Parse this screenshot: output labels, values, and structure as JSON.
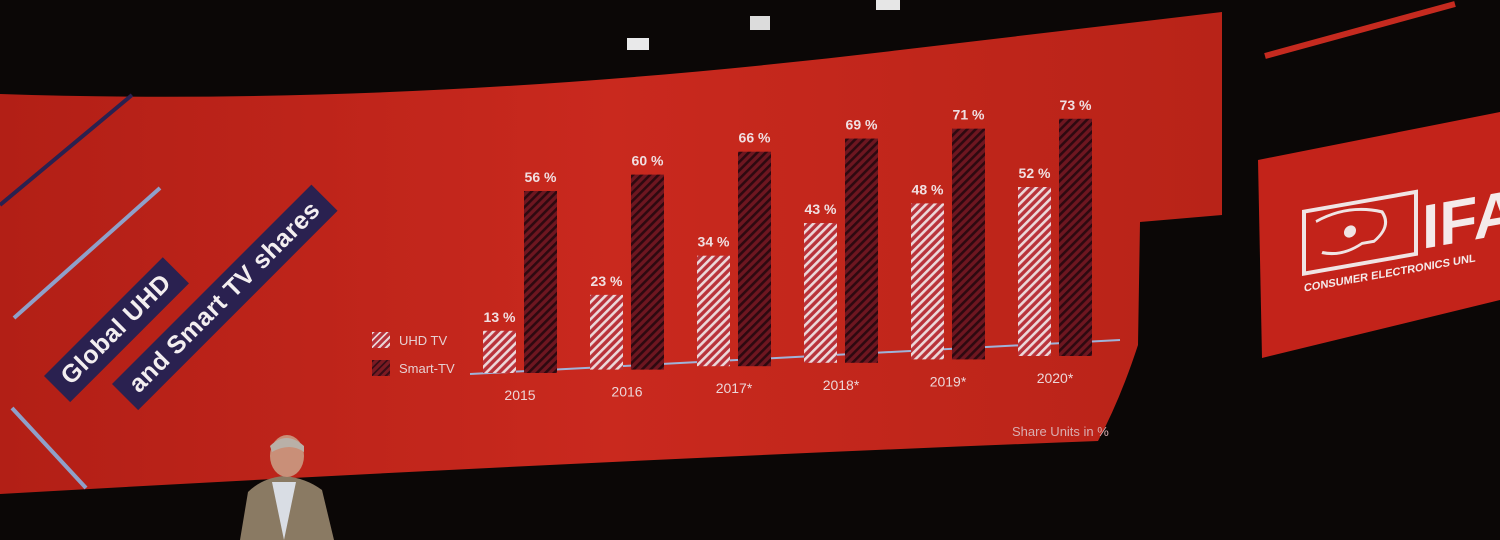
{
  "slide": {
    "title_line1": "Global UHD",
    "title_line2": "and Smart TV shares",
    "footnote": "Share Units in %",
    "colors": {
      "background": "#c4261c",
      "title_box": "#2a2150",
      "uhd": "#e9d3d5",
      "smart": "#3a0d16"
    }
  },
  "logo": {
    "name": "IFA",
    "tagline": "CONSUMER ELECTRONICS UNL"
  },
  "chart_data": {
    "type": "bar",
    "categories": [
      "2015",
      "2016",
      "2017*",
      "2018*",
      "2019*",
      "2020*"
    ],
    "series": [
      {
        "name": "UHD TV",
        "values": [
          13,
          23,
          34,
          43,
          48,
          52
        ],
        "labels": [
          "13 %",
          "23 %",
          "34 %",
          "43 %",
          "48 %",
          "52 %"
        ]
      },
      {
        "name": "Smart-TV",
        "values": [
          56,
          60,
          66,
          69,
          71,
          73
        ],
        "labels": [
          "56 %",
          "60 %",
          "66 %",
          "69 %",
          "71 %",
          "73 %"
        ]
      }
    ],
    "ylim": [
      0,
      80
    ],
    "legend": "left",
    "grid": false
  }
}
